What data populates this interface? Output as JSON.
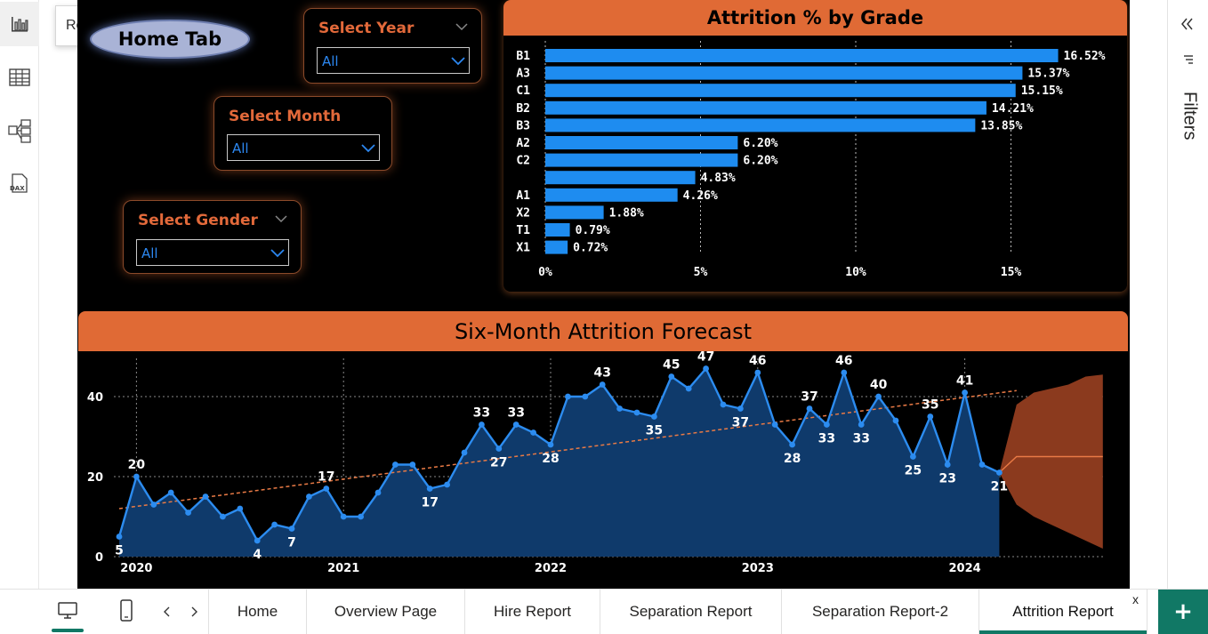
{
  "rail": {
    "tooltip": "Report view"
  },
  "home_button": {
    "label": "Home Tab"
  },
  "slicers": {
    "year": {
      "title": "Select Year",
      "value": "All"
    },
    "month": {
      "title": "Select Month",
      "value": "All"
    },
    "gender": {
      "title": "Select Gender",
      "value": "All"
    }
  },
  "bar_panel_title": "Attrition % by Grade",
  "forecast_panel_title": "Six-Month Attrition Forecast",
  "filters_label": "Filters",
  "tabs": [
    "Home",
    "Overview Page",
    "Hire Report",
    "Separation Report",
    "Separation Report-2",
    "Attrition Report"
  ],
  "active_tab": "Attrition Report",
  "tab_close": "x",
  "add_page": "+",
  "colors": {
    "accent": "#e06a35",
    "bar": "#1e8cf0",
    "line": "#2c8cf0",
    "area": "#0f3a6b",
    "forecast": "#8b3a1e"
  },
  "chart_data": [
    {
      "type": "bar",
      "orientation": "horizontal",
      "title": "Attrition % by Grade",
      "categories": [
        "B1",
        "A3",
        "C1",
        "B2",
        "B3",
        "A2",
        "C2",
        "",
        "A1",
        "X2",
        "T1",
        "X1"
      ],
      "values": [
        16.52,
        15.37,
        15.15,
        14.21,
        13.85,
        6.2,
        6.2,
        4.83,
        4.26,
        1.88,
        0.79,
        0.72
      ],
      "labels": [
        "16.52%",
        "15.37%",
        "15.15%",
        "14.21%",
        "13.85%",
        "6.20%",
        "6.20%",
        "4.83%",
        "4.26%",
        "1.88%",
        "0.79%",
        "0.72%"
      ],
      "xticks": [
        "0%",
        "5%",
        "10%",
        "15%"
      ],
      "xtick_values": [
        0,
        5,
        10,
        15
      ],
      "xlim": [
        0,
        17.5
      ],
      "grid": true
    },
    {
      "type": "area",
      "title": "Six-Month Attrition Forecast",
      "x_start": "2020-01",
      "values": [
        5,
        20,
        13,
        16,
        11,
        15,
        10,
        12,
        4,
        8,
        7,
        15,
        17,
        10,
        10,
        16,
        23,
        23,
        17,
        18,
        26,
        33,
        27,
        33,
        31,
        28,
        40,
        40,
        43,
        37,
        36,
        35,
        45,
        42,
        47,
        38,
        37,
        46,
        33,
        28,
        37,
        33,
        46,
        33,
        40,
        34,
        25,
        35,
        23,
        41,
        23,
        21
      ],
      "point_labels": {
        "0": "5",
        "1": "20",
        "8": "4",
        "10": "7",
        "12": "17",
        "18": "17",
        "21": "33",
        "22": "27",
        "23": "33",
        "25": "28",
        "28": "43",
        "31": "35",
        "32": "45",
        "34": "47",
        "36": "37",
        "37": "46",
        "39": "28",
        "40": "37",
        "41": "33",
        "42": "46",
        "43": "33",
        "44": "40",
        "46": "25",
        "47": "35",
        "48": "23",
        "49": "41",
        "51": "21"
      },
      "xticks": [
        "2020",
        "2021",
        "2022",
        "2023",
        "2024"
      ],
      "xtick_index": [
        1,
        13,
        25,
        37,
        49
      ],
      "yticks": [
        0,
        20,
        40
      ],
      "ylim": [
        0,
        50
      ],
      "trend": [
        12,
        41.5
      ],
      "forecast": {
        "months": 6,
        "center": [
          21,
          25,
          25,
          25,
          25,
          25,
          25
        ],
        "upper": [
          21,
          38,
          41,
          42,
          43,
          45,
          45.5
        ],
        "lower": [
          21,
          13,
          10,
          8,
          6,
          4,
          2
        ]
      },
      "grid": true
    }
  ]
}
